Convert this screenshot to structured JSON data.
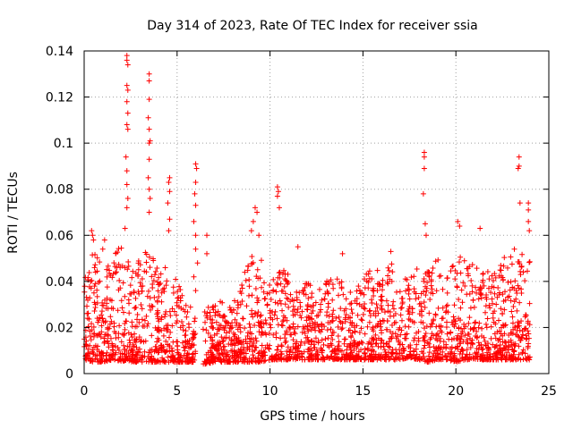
{
  "chart_data": {
    "type": "scatter",
    "title": "Day 314 of 2023, Rate Of TEC Index for receiver ssia",
    "xlabel": "GPS time / hours",
    "ylabel": "ROTI / TECUs",
    "xlim": [
      0,
      25
    ],
    "ylim": [
      0,
      0.14
    ],
    "x_ticks": [
      0,
      5,
      10,
      15,
      20,
      25
    ],
    "x_tick_labels": [
      "0",
      "5",
      "10",
      "15",
      "20",
      "25"
    ],
    "y_ticks": [
      0,
      0.02,
      0.04,
      0.06,
      0.08,
      0.1,
      0.12,
      0.14
    ],
    "y_tick_labels": [
      "0",
      "0.02",
      "0.04",
      "0.06",
      "0.08",
      "0.1",
      "0.12",
      "0.14"
    ],
    "grid": true,
    "marker": "plus",
    "marker_color": "#ff0000",
    "data_gap_hours": [
      6.0,
      6.4
    ],
    "envelope": {
      "x": [
        0.0,
        0.5,
        1.0,
        1.5,
        2.0,
        2.3,
        2.6,
        3.0,
        3.5,
        4.0,
        4.5,
        5.0,
        5.5,
        6.0,
        6.5,
        7.0,
        7.5,
        8.0,
        8.5,
        9.0,
        9.5,
        10.0,
        10.5,
        11.0,
        11.5,
        12.0,
        12.5,
        13.0,
        13.5,
        14.0,
        14.5,
        15.0,
        15.5,
        16.0,
        16.5,
        17.0,
        17.5,
        18.0,
        18.5,
        19.0,
        19.5,
        20.0,
        20.5,
        21.0,
        21.5,
        22.0,
        22.5,
        23.0,
        23.5,
        24.0
      ],
      "low": [
        0.006,
        0.005,
        0.005,
        0.006,
        0.005,
        0.006,
        0.005,
        0.005,
        0.005,
        0.005,
        0.005,
        0.005,
        0.005,
        0.005,
        0.004,
        0.005,
        0.005,
        0.005,
        0.005,
        0.005,
        0.005,
        0.006,
        0.006,
        0.006,
        0.006,
        0.006,
        0.006,
        0.006,
        0.006,
        0.006,
        0.006,
        0.006,
        0.006,
        0.006,
        0.006,
        0.006,
        0.007,
        0.006,
        0.005,
        0.006,
        0.006,
        0.005,
        0.006,
        0.006,
        0.006,
        0.006,
        0.006,
        0.006,
        0.006,
        0.006
      ],
      "high": [
        0.04,
        0.055,
        0.045,
        0.05,
        0.06,
        0.055,
        0.048,
        0.05,
        0.055,
        0.045,
        0.048,
        0.04,
        0.032,
        0.03,
        0.03,
        0.03,
        0.032,
        0.035,
        0.04,
        0.055,
        0.05,
        0.04,
        0.05,
        0.045,
        0.038,
        0.04,
        0.035,
        0.04,
        0.042,
        0.04,
        0.038,
        0.042,
        0.046,
        0.044,
        0.048,
        0.044,
        0.04,
        0.05,
        0.048,
        0.05,
        0.044,
        0.05,
        0.052,
        0.048,
        0.05,
        0.046,
        0.05,
        0.055,
        0.052,
        0.05
      ]
    },
    "spikes": [
      {
        "x": 2.3,
        "y": 0.138
      },
      {
        "x": 2.3,
        "y": 0.136
      },
      {
        "x": 2.35,
        "y": 0.134
      },
      {
        "x": 2.3,
        "y": 0.125
      },
      {
        "x": 2.35,
        "y": 0.123
      },
      {
        "x": 2.3,
        "y": 0.118
      },
      {
        "x": 2.35,
        "y": 0.113
      },
      {
        "x": 2.3,
        "y": 0.108
      },
      {
        "x": 2.35,
        "y": 0.106
      },
      {
        "x": 2.25,
        "y": 0.094
      },
      {
        "x": 2.3,
        "y": 0.088
      },
      {
        "x": 2.3,
        "y": 0.082
      },
      {
        "x": 2.35,
        "y": 0.076
      },
      {
        "x": 2.3,
        "y": 0.072
      },
      {
        "x": 2.2,
        "y": 0.063
      },
      {
        "x": 3.5,
        "y": 0.13
      },
      {
        "x": 3.5,
        "y": 0.127
      },
      {
        "x": 3.5,
        "y": 0.119
      },
      {
        "x": 3.45,
        "y": 0.111
      },
      {
        "x": 3.5,
        "y": 0.106
      },
      {
        "x": 3.55,
        "y": 0.101
      },
      {
        "x": 3.5,
        "y": 0.1
      },
      {
        "x": 3.5,
        "y": 0.093
      },
      {
        "x": 3.45,
        "y": 0.085
      },
      {
        "x": 3.5,
        "y": 0.08
      },
      {
        "x": 3.55,
        "y": 0.076
      },
      {
        "x": 3.5,
        "y": 0.07
      },
      {
        "x": 4.6,
        "y": 0.085
      },
      {
        "x": 4.55,
        "y": 0.083
      },
      {
        "x": 4.6,
        "y": 0.079
      },
      {
        "x": 4.5,
        "y": 0.074
      },
      {
        "x": 4.6,
        "y": 0.067
      },
      {
        "x": 4.55,
        "y": 0.062
      },
      {
        "x": 6.0,
        "y": 0.091
      },
      {
        "x": 6.05,
        "y": 0.089
      },
      {
        "x": 6.0,
        "y": 0.083
      },
      {
        "x": 5.95,
        "y": 0.078
      },
      {
        "x": 6.0,
        "y": 0.073
      },
      {
        "x": 5.9,
        "y": 0.066
      },
      {
        "x": 6.0,
        "y": 0.06
      },
      {
        "x": 6.0,
        "y": 0.054
      },
      {
        "x": 6.1,
        "y": 0.048
      },
      {
        "x": 5.9,
        "y": 0.042
      },
      {
        "x": 6.0,
        "y": 0.036
      },
      {
        "x": 6.6,
        "y": 0.06
      },
      {
        "x": 6.6,
        "y": 0.052
      },
      {
        "x": 9.2,
        "y": 0.072
      },
      {
        "x": 9.3,
        "y": 0.07
      },
      {
        "x": 9.1,
        "y": 0.066
      },
      {
        "x": 9.0,
        "y": 0.062
      },
      {
        "x": 9.4,
        "y": 0.06
      },
      {
        "x": 10.4,
        "y": 0.081
      },
      {
        "x": 10.45,
        "y": 0.079
      },
      {
        "x": 10.4,
        "y": 0.077
      },
      {
        "x": 10.5,
        "y": 0.072
      },
      {
        "x": 18.3,
        "y": 0.096
      },
      {
        "x": 18.3,
        "y": 0.094
      },
      {
        "x": 18.3,
        "y": 0.089
      },
      {
        "x": 18.25,
        "y": 0.078
      },
      {
        "x": 18.35,
        "y": 0.065
      },
      {
        "x": 18.4,
        "y": 0.06
      },
      {
        "x": 23.4,
        "y": 0.094
      },
      {
        "x": 23.4,
        "y": 0.09
      },
      {
        "x": 23.35,
        "y": 0.089
      },
      {
        "x": 23.45,
        "y": 0.074
      },
      {
        "x": 23.9,
        "y": 0.074
      },
      {
        "x": 23.9,
        "y": 0.071
      },
      {
        "x": 23.9,
        "y": 0.066
      },
      {
        "x": 23.95,
        "y": 0.062
      },
      {
        "x": 20.1,
        "y": 0.066
      },
      {
        "x": 20.2,
        "y": 0.064
      },
      {
        "x": 21.3,
        "y": 0.063
      },
      {
        "x": 16.5,
        "y": 0.053
      },
      {
        "x": 11.5,
        "y": 0.055
      },
      {
        "x": 13.9,
        "y": 0.052
      },
      {
        "x": 0.4,
        "y": 0.062
      },
      {
        "x": 0.45,
        "y": 0.06
      },
      {
        "x": 0.5,
        "y": 0.058
      },
      {
        "x": 1.1,
        "y": 0.058
      },
      {
        "x": 1.0,
        "y": 0.054
      }
    ]
  }
}
